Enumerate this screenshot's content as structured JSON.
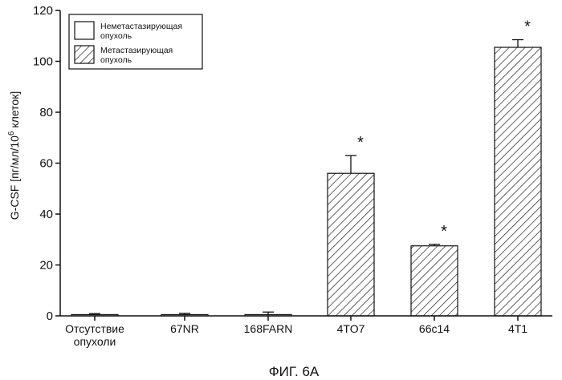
{
  "chart_data": {
    "type": "bar",
    "categories": [
      "Отсутствие опухоли",
      "67NR",
      "168FARN",
      "4TO7",
      "66c14",
      "4T1"
    ],
    "category_lines": [
      [
        "Отсутствие",
        "опухоли"
      ],
      [
        "67NR"
      ],
      [
        "168FARN"
      ],
      [
        "4TO7"
      ],
      [
        "66c14"
      ],
      [
        "4T1"
      ]
    ],
    "values": [
      0.5,
      0.5,
      0.5,
      56,
      27.5,
      105.5
    ],
    "errors": [
      0.4,
      0.5,
      1.0,
      7,
      0.6,
      3
    ],
    "bar_groups": [
      "Неметастазирующая опухоль",
      "Неметастазирующая опухоль",
      "Неметастазирующая опухоль",
      "Метастазирующая опухоль",
      "Метастазирующая опухоль",
      "Метастазирующая опухоль"
    ],
    "significance": [
      "",
      "",
      "",
      "*",
      "*",
      "*"
    ],
    "ylabel_parts": [
      "G-CSF [пг/мл/10",
      "6",
      " клеток]"
    ],
    "ylim": [
      0,
      120
    ],
    "yticks": [
      0,
      20,
      40,
      60,
      80,
      100,
      120
    ],
    "legend": {
      "placement": "top-left",
      "entries": [
        {
          "lines": [
            "Неметастазирующая",
            "опухоль"
          ],
          "pattern": "open"
        },
        {
          "lines": [
            "Метастазирующая",
            "опухоль"
          ],
          "pattern": "hatched"
        }
      ]
    },
    "caption": "ФИГ. 6А",
    "grid": false
  },
  "colors": {
    "axis": "#111111",
    "bar_fill": "#ffffff",
    "hatch": "#111111"
  }
}
